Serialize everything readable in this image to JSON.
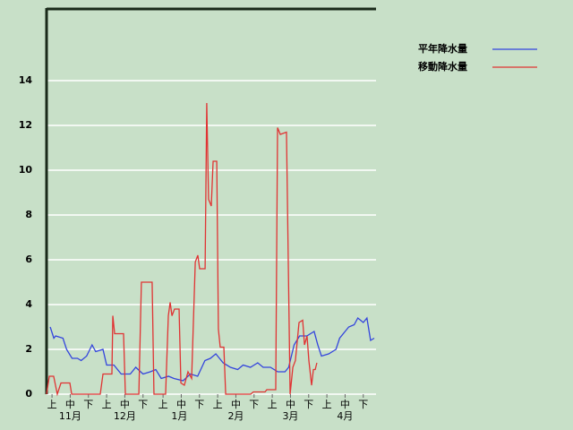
{
  "chart_data": {
    "type": "line",
    "xlim": [
      0,
      181
    ],
    "ylim": [
      0,
      17.2
    ],
    "yticks": [
      0,
      2,
      4,
      6,
      8,
      10,
      12,
      14
    ],
    "grid": true,
    "legend": "top-right",
    "xticks": [
      {
        "value": 3,
        "label": "上"
      },
      {
        "value": 13,
        "label": "中"
      },
      {
        "value": 23,
        "label": "下"
      },
      {
        "value": 33,
        "label": "上"
      },
      {
        "value": 43,
        "label": "中"
      },
      {
        "value": 53,
        "label": "下"
      },
      {
        "value": 64,
        "label": "上"
      },
      {
        "value": 74,
        "label": "中"
      },
      {
        "value": 84,
        "label": "下"
      },
      {
        "value": 94,
        "label": "上"
      },
      {
        "value": 104,
        "label": "中"
      },
      {
        "value": 114,
        "label": "下"
      },
      {
        "value": 124,
        "label": "上"
      },
      {
        "value": 134,
        "label": "中"
      },
      {
        "value": 144,
        "label": "下"
      },
      {
        "value": 154,
        "label": "上"
      },
      {
        "value": 164,
        "label": "中"
      },
      {
        "value": 174,
        "label": "下"
      }
    ],
    "month_ticks": [
      {
        "value": 13,
        "label": "11月"
      },
      {
        "value": 43,
        "label": "12月"
      },
      {
        "value": 73,
        "label": "1月"
      },
      {
        "value": 104,
        "label": "2月"
      },
      {
        "value": 134,
        "label": "3月"
      },
      {
        "value": 164,
        "label": "4月"
      }
    ],
    "series": [
      {
        "name": "平年降水量",
        "color": "#3344dd",
        "x": [
          2,
          4,
          5,
          9,
          11,
          14,
          17,
          19,
          22,
          25,
          27,
          31,
          33,
          37,
          41,
          46,
          49,
          53,
          57,
          60,
          63,
          67,
          70,
          75,
          79,
          83,
          87,
          90,
          93,
          97,
          101,
          105,
          108,
          112,
          116,
          119,
          123,
          127,
          131,
          133,
          136,
          139,
          143,
          147,
          149,
          151,
          155,
          159,
          161,
          164,
          166,
          169,
          171,
          174,
          176,
          178,
          180
        ],
        "values": [
          3.0,
          2.5,
          2.6,
          2.5,
          2.0,
          1.6,
          1.6,
          1.5,
          1.7,
          2.2,
          1.9,
          2.0,
          1.3,
          1.3,
          0.9,
          0.9,
          1.2,
          0.9,
          1.0,
          1.1,
          0.7,
          0.8,
          0.7,
          0.6,
          0.9,
          0.8,
          1.5,
          1.6,
          1.8,
          1.4,
          1.2,
          1.1,
          1.3,
          1.2,
          1.4,
          1.2,
          1.2,
          1.0,
          1.0,
          1.2,
          2.2,
          2.6,
          2.6,
          2.8,
          2.2,
          1.7,
          1.8,
          2.0,
          2.5,
          2.8,
          3.0,
          3.1,
          3.4,
          3.2,
          3.4,
          2.4,
          2.5
        ]
      },
      {
        "name": "移動降水量",
        "color": "#e03333",
        "x": [
          0,
          1.5,
          3.9,
          5.9,
          7.9,
          12.8,
          13.8,
          29.5,
          31,
          35.9,
          36.4,
          37.4,
          42.3,
          43.3,
          50.7,
          52.1,
          58,
          59,
          65.4,
          66.9,
          67.9,
          68.9,
          70.3,
          72.8,
          73.8,
          75.7,
          77.7,
          79.7,
          81.7,
          83.1,
          84.1,
          87.1,
          88,
          89,
          90.5,
          91.5,
          93.5,
          94.4,
          95.4,
          97.4,
          98.4,
          112.1,
          113.6,
          120,
          121,
          125.9,
          126.9,
          128.4,
          131.8,
          133.8,
          135.3,
          136.7,
          138.7,
          140.7,
          141.7,
          143.1,
          144.1,
          145.6,
          146.6,
          147.6,
          148.5
        ],
        "values": [
          0,
          0.8,
          0.8,
          0,
          0.5,
          0.5,
          0,
          0,
          0.9,
          0.9,
          3.5,
          2.7,
          2.7,
          0,
          0,
          5.0,
          5.0,
          0,
          0,
          3.5,
          4.1,
          3.5,
          3.8,
          3.8,
          0.5,
          0.4,
          1.0,
          0.7,
          5.9,
          6.2,
          5.6,
          5.6,
          13.0,
          8.7,
          8.4,
          10.4,
          10.4,
          2.9,
          2.1,
          2.1,
          0,
          0,
          0.1,
          0.1,
          0.2,
          0.2,
          11.9,
          11.6,
          11.7,
          0,
          1.2,
          1.5,
          3.2,
          3.3,
          2.2,
          2.6,
          1.5,
          0.4,
          1.1,
          1.1,
          1.4
        ]
      }
    ]
  }
}
